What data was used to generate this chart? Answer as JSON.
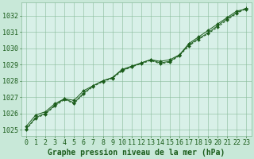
{
  "xlabel": "Graphe pression niveau de la mer (hPa)",
  "ylim": [
    1024.6,
    1032.8
  ],
  "xlim": [
    -0.5,
    23.5
  ],
  "yticks": [
    1025,
    1026,
    1027,
    1028,
    1029,
    1030,
    1031,
    1032
  ],
  "xticks": [
    0,
    1,
    2,
    3,
    4,
    5,
    6,
    7,
    8,
    9,
    10,
    11,
    12,
    13,
    14,
    15,
    16,
    17,
    18,
    19,
    20,
    21,
    22,
    23
  ],
  "background_color": "#c8e8d8",
  "plot_bg_color": "#d8f0e8",
  "grid_color": "#88bb99",
  "line_color": "#1a5c1a",
  "series1": [
    1025.2,
    1025.9,
    1026.1,
    1026.6,
    1026.9,
    1026.8,
    1027.4,
    1027.7,
    1028.0,
    1028.2,
    1028.7,
    1028.9,
    1029.1,
    1029.3,
    1029.2,
    1029.3,
    1029.6,
    1030.3,
    1030.7,
    1031.1,
    1031.5,
    1031.9,
    1032.3,
    1032.4
  ],
  "series2": [
    1025.0,
    1025.7,
    1025.95,
    1026.45,
    1026.85,
    1026.6,
    1027.2,
    1027.65,
    1027.95,
    1028.15,
    1028.6,
    1028.85,
    1029.05,
    1029.25,
    1029.05,
    1029.15,
    1029.55,
    1030.15,
    1030.55,
    1030.9,
    1031.3,
    1031.75,
    1032.15,
    1032.45
  ],
  "series3": [
    1025.05,
    1025.75,
    1026.0,
    1026.5,
    1026.9,
    1026.65,
    1027.25,
    1027.7,
    1028.0,
    1028.2,
    1028.65,
    1028.87,
    1029.1,
    1029.3,
    1029.1,
    1029.2,
    1029.58,
    1030.22,
    1030.6,
    1030.95,
    1031.4,
    1031.82,
    1032.2,
    1032.48
  ],
  "xlabel_fontsize": 7,
  "tick_fontsize": 6,
  "tick_color": "#1a5c1a",
  "xlabel_color": "#1a5c1a"
}
